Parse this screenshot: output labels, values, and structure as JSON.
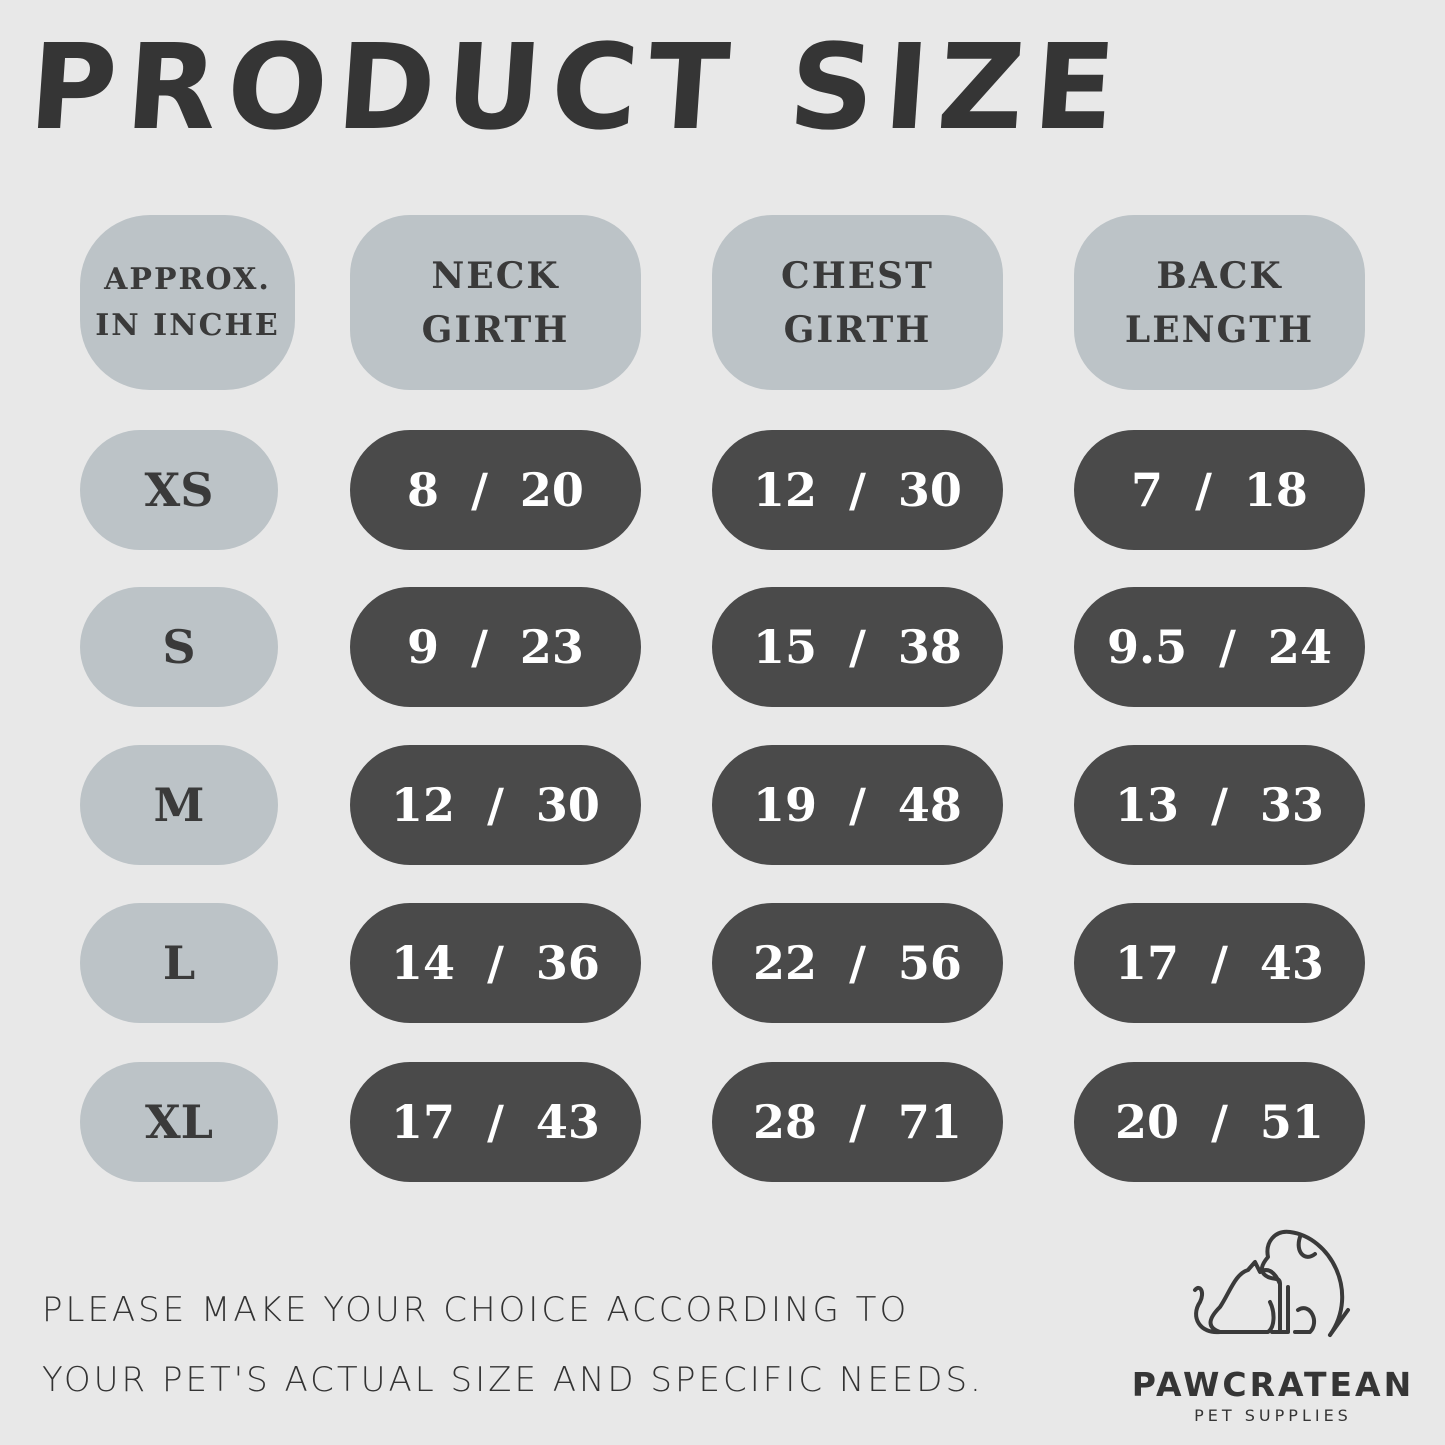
{
  "title": "PRODUCT SIZE",
  "headers": [
    "APPROX.\nIN INCHE",
    "NECK\nGIRTH",
    "CHEST\nGIRTH",
    "BACK\nLENGTH"
  ],
  "rows": [
    {
      "size": "XS",
      "neck": "8  /  20",
      "chest": "12  /  30",
      "back": "7  /  18"
    },
    {
      "size": "S",
      "neck": "9  /  23",
      "chest": "15  /  38",
      "back": "9.5  /  24"
    },
    {
      "size": "M",
      "neck": "12  /  30",
      "chest": "19  /  48",
      "back": "13  /  33"
    },
    {
      "size": "L",
      "neck": "14  /  36",
      "chest": "22  /  56",
      "back": "17  /  43"
    },
    {
      "size": "XL",
      "neck": "17  /  43",
      "chest": "28  /  71",
      "back": "20  /  51"
    }
  ],
  "note": {
    "line1": "PLEASE MAKE YOUR CHOICE ACCORDING TO",
    "line2": "YOUR PET'S ACTUAL SIZE AND SPECIFIC NEEDS."
  },
  "brand": {
    "name": "PAWCRATEAN",
    "tagline": "PET SUPPLIES",
    "logo_icon": "dog-and-cat-outline-icon"
  },
  "colors": {
    "background": "#e8e8e8",
    "light_pill": "#bcc3c7",
    "dark_pill": "#4a4a4a",
    "text": "#3a3a3a"
  }
}
